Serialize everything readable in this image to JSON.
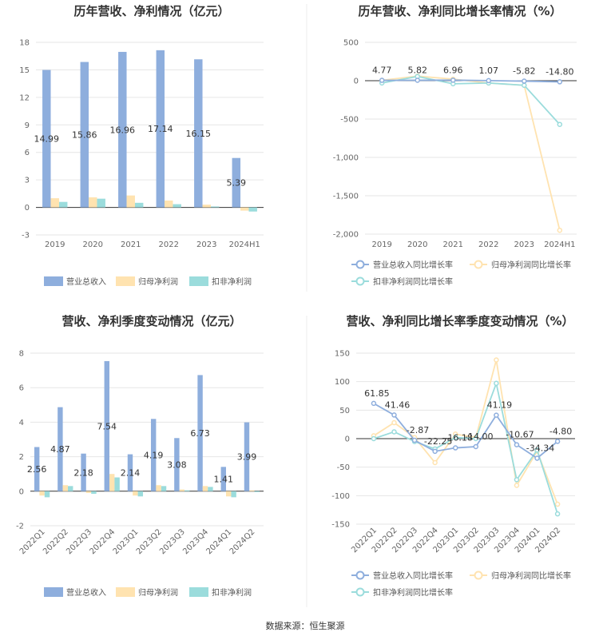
{
  "colors": {
    "revenue": "#8eaedd",
    "net_profit": "#ffe3b0",
    "deducted_profit": "#9bdcdc"
  },
  "source": "数据来源：恒生聚源",
  "chart_data": [
    {
      "type": "bar",
      "title": "历年营收、净利情况（亿元）",
      "categories": [
        "2019",
        "2020",
        "2021",
        "2022",
        "2023",
        "2024H1"
      ],
      "ylim": [
        -3,
        18
      ],
      "yticks": [
        "-3",
        "0",
        "3",
        "6",
        "9",
        "12",
        "15",
        "18"
      ],
      "grid": true,
      "legend": "bottom",
      "series": [
        {
          "name": "营业总收入",
          "values": [
            14.99,
            15.86,
            16.96,
            17.14,
            16.15,
            5.39
          ],
          "labels": [
            "14.99",
            "15.86",
            "16.96",
            "17.14",
            "16.15",
            "5.39"
          ]
        },
        {
          "name": "归母净利润",
          "values": [
            1.0,
            1.1,
            1.3,
            0.75,
            0.3,
            -0.35
          ]
        },
        {
          "name": "扣非净利润",
          "values": [
            0.6,
            0.95,
            0.5,
            0.35,
            0.1,
            -0.45
          ]
        }
      ]
    },
    {
      "type": "line",
      "title": "历年营收、净利同比增长率情况（%）",
      "categories": [
        "2019",
        "2020",
        "2021",
        "2022",
        "2023",
        "2024H1"
      ],
      "ylim": [
        -2000,
        500
      ],
      "yticks": [
        "-2,000",
        "-1,500",
        "-1,000",
        "-500",
        "0",
        "500"
      ],
      "grid": true,
      "legend": "bottom",
      "series": [
        {
          "name": "营业总收入同比增长率",
          "values": [
            4.77,
            5.82,
            6.96,
            1.07,
            -5.82,
            -14.8
          ],
          "labels": [
            "4.77",
            "5.82",
            "6.96",
            "1.07",
            "-5.82",
            "-14.80"
          ]
        },
        {
          "name": "归母净利润同比增长率",
          "values": [
            5,
            60,
            20,
            -30,
            -60,
            -1950
          ]
        },
        {
          "name": "扣非净利润同比增长率",
          "values": [
            -30,
            55,
            -40,
            -30,
            -60,
            -570
          ]
        }
      ]
    },
    {
      "type": "bar",
      "title": "营收、净利季度变动情况（亿元）",
      "categories": [
        "2022Q1",
        "2022Q2",
        "2022Q3",
        "2022Q4",
        "2023Q1",
        "2023Q2",
        "2023Q3",
        "2023Q4",
        "2024Q1",
        "2024Q2"
      ],
      "ylim": [
        -2,
        8
      ],
      "yticks": [
        "-2",
        "0",
        "2",
        "4",
        "6",
        "8"
      ],
      "grid": true,
      "legend": "bottom",
      "series": [
        {
          "name": "营业总收入",
          "values": [
            2.56,
            4.87,
            2.18,
            7.54,
            2.14,
            4.19,
            3.08,
            6.73,
            1.41,
            3.99
          ],
          "labels": [
            "2.56",
            "4.87",
            "2.18",
            "7.54",
            "2.14",
            "4.19",
            "3.08",
            "6.73",
            "1.41",
            "3.99"
          ]
        },
        {
          "name": "归母净利润",
          "values": [
            -0.25,
            0.35,
            -0.1,
            1.0,
            -0.25,
            0.35,
            0.1,
            0.3,
            -0.3,
            0.05
          ]
        },
        {
          "name": "扣非净利润",
          "values": [
            -0.35,
            0.3,
            -0.15,
            0.8,
            -0.3,
            0.3,
            0.05,
            0.25,
            -0.35,
            -0.05
          ]
        }
      ]
    },
    {
      "type": "line",
      "title": "营收、净利同比增长率季度变动情况（%）",
      "categories": [
        "2022Q1",
        "2022Q2",
        "2022Q3",
        "2022Q4",
        "2023Q1",
        "2023Q2",
        "2023Q3",
        "2023Q4",
        "2024Q1",
        "2024Q2"
      ],
      "ylim": [
        -150,
        150
      ],
      "yticks": [
        "-150",
        "-100",
        "-50",
        "0",
        "50",
        "100",
        "150"
      ],
      "grid": true,
      "legend": "bottom",
      "series": [
        {
          "name": "营业总收入同比增长率",
          "values": [
            61.85,
            41.46,
            -2.87,
            -22.25,
            -16.18,
            -14.0,
            41.19,
            -10.67,
            -34.34,
            -4.8
          ],
          "labels": [
            "61.85",
            "41.46",
            "-2.87",
            "-22.25",
            "-16.18",
            "-14.00",
            "41.19",
            "-10.67",
            "-34.34",
            "-4.80"
          ]
        },
        {
          "name": "归母净利润同比增长率",
          "values": [
            5,
            28,
            2,
            -42,
            8,
            2,
            138,
            -82,
            -22,
            -115
          ]
        },
        {
          "name": "扣非净利润同比增长率",
          "values": [
            0,
            12,
            -5,
            -18,
            2,
            0,
            97,
            -72,
            -20,
            -132
          ]
        }
      ]
    }
  ]
}
